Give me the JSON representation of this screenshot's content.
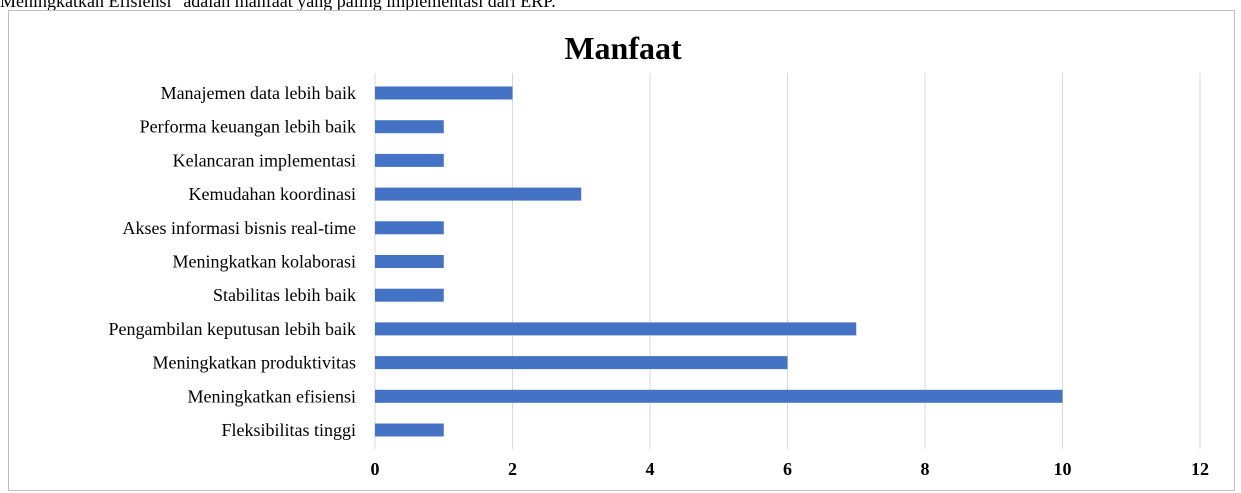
{
  "page": {
    "top_text": "Meningkatkan Efisiensi\" adalah manfaat yang paling         implementasi dari ERP."
  },
  "chart_data": {
    "type": "bar",
    "orientation": "horizontal",
    "title": "Manfaat",
    "categories": [
      "Manajemen data lebih baik",
      "Performa keuangan lebih baik",
      "Kelancaran implementasi",
      "Kemudahan koordinasi",
      "Akses informasi bisnis real-time",
      "Meningkatkan kolaborasi",
      "Stabilitas lebih baik",
      "Pengambilan keputusan lebih baik",
      "Meningkatkan produktivitas",
      "Meningkatkan efisiensi",
      "Fleksibilitas tinggi"
    ],
    "values": [
      2,
      1,
      1,
      3,
      1,
      1,
      1,
      7,
      6,
      10,
      1
    ],
    "xlim": [
      0,
      12
    ],
    "xticks": [
      "0",
      "2",
      "4",
      "6",
      "8",
      "10",
      "12"
    ],
    "grid": true,
    "legend": "none",
    "bar_color": "#4472c4"
  }
}
